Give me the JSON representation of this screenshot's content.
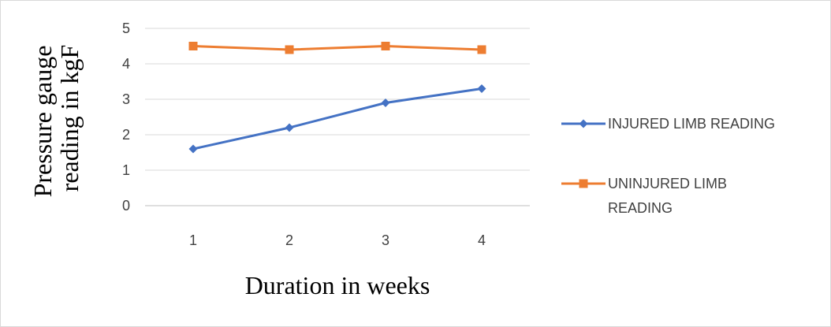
{
  "chart_data": {
    "type": "line",
    "categories": [
      "1",
      "2",
      "3",
      "4"
    ],
    "series": [
      {
        "name": "INJURED LIMB READING",
        "values": [
          1.6,
          2.2,
          2.9,
          3.3
        ],
        "color": "#4472c4",
        "marker": "diamond",
        "legend_lines": [
          "INJURED LIMB READING"
        ]
      },
      {
        "name": "UNINJURED LIMB READING",
        "values": [
          4.5,
          4.4,
          4.5,
          4.4
        ],
        "color": "#ed7d31",
        "marker": "square",
        "legend_lines": [
          "UNINJURED LIMB",
          "READING"
        ]
      }
    ],
    "xlabel": "Duration in weeks",
    "ylabel_lines": [
      "Pressure gauge",
      "reading in kgF"
    ],
    "ylim": [
      0,
      5
    ],
    "yticks": [
      "0",
      "1",
      "2",
      "3",
      "4",
      "5"
    ],
    "grid": true,
    "legend_position": "right"
  }
}
